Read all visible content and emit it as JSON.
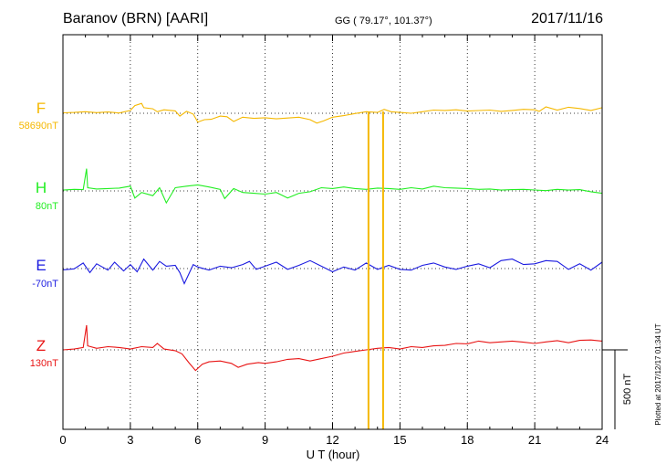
{
  "header": {
    "station": "Baranov (BRN)  [AARI]",
    "coords": "GG ( 79.17°, 101.37°)",
    "date": "2017/11/16"
  },
  "footer": {
    "plotted": "Plotted at 2017/12/17 01:34  UT"
  },
  "chart_data": {
    "type": "line",
    "xlabel": "U T (hour)",
    "xlim": [
      0,
      24
    ],
    "xticks": [
      "0",
      "3",
      "6",
      "9",
      "12",
      "15",
      "18",
      "21",
      "24"
    ],
    "grid": true,
    "scale_bar": {
      "label": "500 nT",
      "value": 500
    },
    "series": [
      {
        "name": "F",
        "baseline": "58690nT",
        "color": "#f5b800",
        "points": [
          [
            0,
            -3
          ],
          [
            0.5,
            -5
          ],
          [
            1,
            -10
          ],
          [
            1.5,
            -4
          ],
          [
            2,
            -8
          ],
          [
            2.5,
            -2
          ],
          [
            3,
            -18
          ],
          [
            3.2,
            -48
          ],
          [
            3.5,
            -62
          ],
          [
            3.6,
            -35
          ],
          [
            4,
            -28
          ],
          [
            4.2,
            -10
          ],
          [
            4.5,
            -22
          ],
          [
            5,
            -15
          ],
          [
            5.2,
            18
          ],
          [
            5.5,
            -12
          ],
          [
            5.8,
            5
          ],
          [
            6,
            55
          ],
          [
            6.3,
            40
          ],
          [
            6.6,
            38
          ],
          [
            7,
            18
          ],
          [
            7.3,
            22
          ],
          [
            7.6,
            52
          ],
          [
            8,
            25
          ],
          [
            8.5,
            32
          ],
          [
            9,
            28
          ],
          [
            9.5,
            35
          ],
          [
            10,
            30
          ],
          [
            10.5,
            25
          ],
          [
            11,
            40
          ],
          [
            11.3,
            62
          ],
          [
            11.6,
            48
          ],
          [
            12,
            25
          ],
          [
            12.5,
            15
          ],
          [
            13,
            2
          ],
          [
            13.5,
            -10
          ],
          [
            14,
            -5
          ],
          [
            14.3,
            -25
          ],
          [
            14.6,
            -10
          ],
          [
            15,
            -5
          ],
          [
            15.5,
            0
          ],
          [
            16,
            -10
          ],
          [
            16.5,
            -20
          ],
          [
            17,
            -18
          ],
          [
            17.5,
            -22
          ],
          [
            18,
            -14
          ],
          [
            18.5,
            -17
          ],
          [
            19,
            -20
          ],
          [
            19.5,
            -12
          ],
          [
            20,
            -18
          ],
          [
            20.5,
            -25
          ],
          [
            21,
            -22
          ],
          [
            21.2,
            -12
          ],
          [
            21.5,
            -40
          ],
          [
            22,
            -20
          ],
          [
            22.5,
            -38
          ],
          [
            23,
            -30
          ],
          [
            23.5,
            -18
          ],
          [
            24,
            -35
          ]
        ]
      },
      {
        "name": "H",
        "baseline": "80nT",
        "color": "#22ee22",
        "points": [
          [
            0,
            -5
          ],
          [
            0.5,
            -10
          ],
          [
            0.9,
            -8
          ],
          [
            1.05,
            -140
          ],
          [
            1.1,
            -20
          ],
          [
            1.5,
            -12
          ],
          [
            2,
            -15
          ],
          [
            2.5,
            -18
          ],
          [
            3,
            -30
          ],
          [
            3.2,
            45
          ],
          [
            3.5,
            10
          ],
          [
            4,
            30
          ],
          [
            4.3,
            -20
          ],
          [
            4.6,
            75
          ],
          [
            5,
            -20
          ],
          [
            5.5,
            -30
          ],
          [
            6,
            -38
          ],
          [
            6.5,
            -25
          ],
          [
            7,
            -10
          ],
          [
            7.2,
            48
          ],
          [
            7.6,
            -15
          ],
          [
            8,
            10
          ],
          [
            8.5,
            15
          ],
          [
            9,
            20
          ],
          [
            9.5,
            10
          ],
          [
            10,
            45
          ],
          [
            10.5,
            15
          ],
          [
            11,
            5
          ],
          [
            11.5,
            -20
          ],
          [
            12,
            -15
          ],
          [
            12.5,
            -25
          ],
          [
            13,
            -15
          ],
          [
            13.5,
            -10
          ],
          [
            14,
            -18
          ],
          [
            14.5,
            -15
          ],
          [
            15,
            -10
          ],
          [
            15.5,
            -20
          ],
          [
            16,
            -12
          ],
          [
            16.5,
            -30
          ],
          [
            17,
            -20
          ],
          [
            17.5,
            -18
          ],
          [
            18,
            -15
          ],
          [
            18.5,
            -10
          ],
          [
            19,
            -12
          ],
          [
            19.5,
            -5
          ],
          [
            20,
            -8
          ],
          [
            20.5,
            -10
          ],
          [
            21,
            -6
          ],
          [
            21.5,
            -2
          ],
          [
            22,
            -10
          ],
          [
            22.5,
            -5
          ],
          [
            23,
            -8
          ],
          [
            23.5,
            5
          ],
          [
            24,
            15
          ]
        ]
      },
      {
        "name": "E",
        "baseline": "-70nT",
        "color": "#1a1ae0",
        "points": [
          [
            0,
            8
          ],
          [
            0.5,
            2
          ],
          [
            0.9,
            -35
          ],
          [
            1.2,
            25
          ],
          [
            1.5,
            -30
          ],
          [
            2,
            10
          ],
          [
            2.3,
            -40
          ],
          [
            2.7,
            15
          ],
          [
            3,
            -25
          ],
          [
            3.3,
            20
          ],
          [
            3.6,
            -60
          ],
          [
            4,
            10
          ],
          [
            4.3,
            -45
          ],
          [
            4.6,
            -15
          ],
          [
            5,
            -20
          ],
          [
            5.2,
            25
          ],
          [
            5.4,
            95
          ],
          [
            5.8,
            -25
          ],
          [
            6,
            -10
          ],
          [
            6.5,
            10
          ],
          [
            7,
            -15
          ],
          [
            7.5,
            -5
          ],
          [
            8,
            -25
          ],
          [
            8.3,
            -45
          ],
          [
            8.6,
            5
          ],
          [
            9,
            -15
          ],
          [
            9.5,
            -40
          ],
          [
            10,
            5
          ],
          [
            10.5,
            -20
          ],
          [
            11,
            -50
          ],
          [
            11.5,
            -15
          ],
          [
            12,
            20
          ],
          [
            12.5,
            -10
          ],
          [
            13,
            10
          ],
          [
            13.5,
            -35
          ],
          [
            14,
            5
          ],
          [
            14.5,
            -20
          ],
          [
            15,
            5
          ],
          [
            15.5,
            10
          ],
          [
            16,
            -20
          ],
          [
            16.5,
            -35
          ],
          [
            17,
            -10
          ],
          [
            17.5,
            5
          ],
          [
            18,
            -15
          ],
          [
            18.5,
            -30
          ],
          [
            19,
            -5
          ],
          [
            19.5,
            -50
          ],
          [
            20,
            -60
          ],
          [
            20.5,
            -25
          ],
          [
            21,
            -30
          ],
          [
            21.5,
            -50
          ],
          [
            22,
            -45
          ],
          [
            22.5,
            5
          ],
          [
            23,
            -30
          ],
          [
            23.5,
            10
          ],
          [
            24,
            -40
          ]
        ]
      },
      {
        "name": "Z",
        "baseline": "130nT",
        "color": "#e81414",
        "points": [
          [
            0,
            0
          ],
          [
            0.5,
            -5
          ],
          [
            0.9,
            -15
          ],
          [
            1.05,
            -155
          ],
          [
            1.1,
            -25
          ],
          [
            1.5,
            -10
          ],
          [
            2,
            -20
          ],
          [
            2.5,
            -15
          ],
          [
            3,
            -5
          ],
          [
            3.5,
            -20
          ],
          [
            4,
            -15
          ],
          [
            4.2,
            -40
          ],
          [
            4.5,
            -5
          ],
          [
            5,
            5
          ],
          [
            5.3,
            25
          ],
          [
            5.6,
            80
          ],
          [
            5.9,
            130
          ],
          [
            6.2,
            90
          ],
          [
            6.5,
            75
          ],
          [
            7,
            70
          ],
          [
            7.5,
            85
          ],
          [
            7.8,
            110
          ],
          [
            8.2,
            90
          ],
          [
            8.7,
            80
          ],
          [
            9,
            85
          ],
          [
            9.5,
            75
          ],
          [
            10,
            60
          ],
          [
            10.5,
            55
          ],
          [
            11,
            70
          ],
          [
            11.5,
            55
          ],
          [
            12,
            40
          ],
          [
            12.5,
            20
          ],
          [
            13,
            10
          ],
          [
            13.5,
            0
          ],
          [
            14,
            -10
          ],
          [
            14.5,
            -15
          ],
          [
            15,
            -5
          ],
          [
            15.5,
            -20
          ],
          [
            16,
            -15
          ],
          [
            16.5,
            -25
          ],
          [
            17,
            -28
          ],
          [
            17.5,
            -40
          ],
          [
            18,
            -38
          ],
          [
            18.5,
            -55
          ],
          [
            19,
            -45
          ],
          [
            19.5,
            -50
          ],
          [
            20,
            -55
          ],
          [
            20.5,
            -48
          ],
          [
            21,
            -40
          ],
          [
            21.5,
            -50
          ],
          [
            22,
            -58
          ],
          [
            22.5,
            -45
          ],
          [
            23,
            -60
          ],
          [
            23.5,
            -62
          ],
          [
            24,
            -55
          ]
        ]
      }
    ],
    "markers": {
      "color": "#f5b800",
      "x": [
        13.6,
        14.25
      ]
    }
  }
}
